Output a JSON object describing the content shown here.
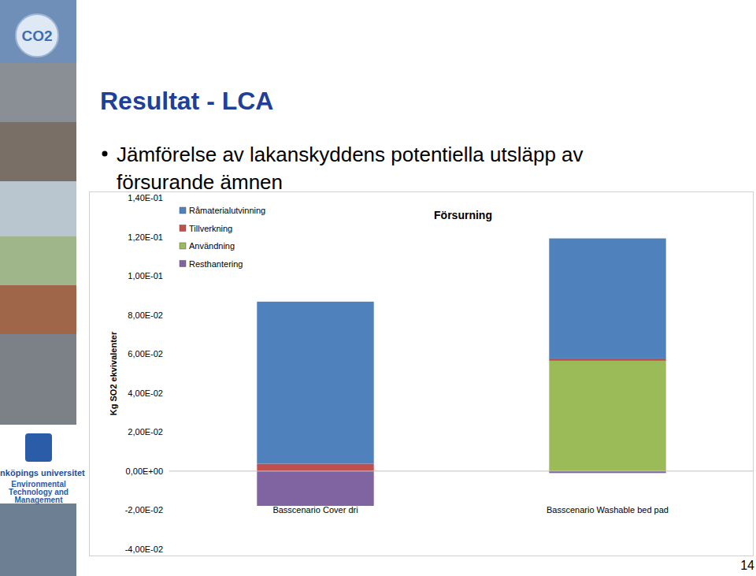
{
  "slide": {
    "title": "Resultat - LCA",
    "bullet_lines": [
      "Jämförelse av lakanskyddens potentiella utsläpp av",
      "försurande ämnen"
    ],
    "badge": "CO2",
    "logo_lines": [
      "Linköpings universitet",
      "Environmental",
      "Technology and",
      "Management"
    ],
    "page_number": "14"
  },
  "chart_data": {
    "type": "bar",
    "stacked": true,
    "title": "Försurning",
    "ylabel": "Kg SO2 ekvivalenter",
    "categories": [
      "Basscenario Cover dri",
      "Basscenario Washable bed pad"
    ],
    "series": [
      {
        "name": "Råmaterialutvinning",
        "color": "#4f81bd",
        "values": [
          0.083,
          0.0615
        ]
      },
      {
        "name": "Tillverkning",
        "color": "#c0504d",
        "values": [
          0.0038,
          0.0012
        ]
      },
      {
        "name": "Användning",
        "color": "#9bbb59",
        "values": [
          0,
          0.0565
        ]
      },
      {
        "name": "Resthantering",
        "color": "#8064a2",
        "values": [
          -0.0178,
          -0.001
        ]
      }
    ],
    "ylim": [
      -0.04,
      0.14
    ],
    "yticks": [
      {
        "value": -0.04,
        "label": "-4,00E-02"
      },
      {
        "value": -0.02,
        "label": "-2,00E-02"
      },
      {
        "value": 0,
        "label": "0,00E+00"
      },
      {
        "value": 0.02,
        "label": "2,00E-02"
      },
      {
        "value": 0.04,
        "label": "4,00E-02"
      },
      {
        "value": 0.06,
        "label": "6,00E-02"
      },
      {
        "value": 0.08,
        "label": "8,00E-02"
      },
      {
        "value": 0.1,
        "label": "1,00E-01"
      },
      {
        "value": 0.12,
        "label": "1,20E-01"
      },
      {
        "value": 0.14,
        "label": "1,40E-01"
      }
    ],
    "grid": false,
    "legend": "top-left"
  }
}
